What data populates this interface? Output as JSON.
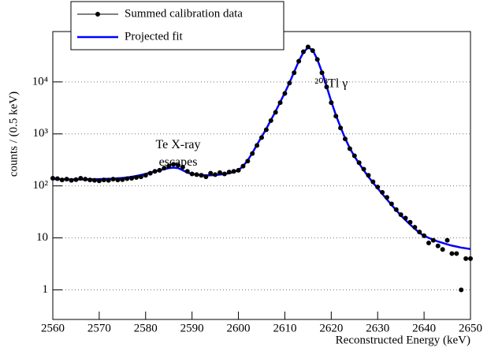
{
  "chart_data": {
    "type": "line",
    "x_label": "Reconstructed Energy (keV)",
    "y_label": "counts / (0.5 keV)",
    "xlim": [
      2560,
      2650
    ],
    "xticks": [
      2560,
      2570,
      2580,
      2590,
      2600,
      2610,
      2620,
      2630,
      2640,
      2650
    ],
    "ylim": [
      0.27,
      93000
    ],
    "log_y": true,
    "grid": true,
    "legend_position": "top-left",
    "yticks": [
      1,
      10,
      {
        "value": 100,
        "label": "10²"
      },
      {
        "value": 1000,
        "label": "10³"
      },
      {
        "value": 10000,
        "label": "10⁴"
      }
    ],
    "annotations": [
      {
        "text": "Te X-ray",
        "x": 2587,
        "y": 600
      },
      {
        "text": "escapes",
        "x": 2587,
        "y": 280
      },
      {
        "text": "²⁰⁸Tl γ",
        "x": 2620,
        "y": 9000
      }
    ],
    "x": [
      2560,
      2561,
      2562,
      2563,
      2564,
      2565,
      2566,
      2567,
      2568,
      2569,
      2570,
      2571,
      2572,
      2573,
      2574,
      2575,
      2576,
      2577,
      2578,
      2579,
      2580,
      2581,
      2582,
      2583,
      2584,
      2585,
      2586,
      2587,
      2588,
      2589,
      2590,
      2591,
      2592,
      2593,
      2594,
      2595,
      2596,
      2597,
      2598,
      2599,
      2600,
      2601,
      2602,
      2603,
      2604,
      2605,
      2606,
      2607,
      2608,
      2609,
      2610,
      2611,
      2612,
      2613,
      2614,
      2615,
      2616,
      2617,
      2618,
      2619,
      2620,
      2621,
      2622,
      2623,
      2624,
      2625,
      2626,
      2627,
      2628,
      2629,
      2630,
      2631,
      2632,
      2633,
      2634,
      2635,
      2636,
      2637,
      2638,
      2639,
      2640,
      2641,
      2642,
      2643,
      2644,
      2645,
      2646,
      2647,
      2648,
      2649,
      2650
    ],
    "series": [
      {
        "name": "Summed calibration data",
        "type": "scatter",
        "color": "#000000",
        "values": [
          140,
          138,
          130,
          135,
          128,
          132,
          140,
          135,
          130,
          128,
          125,
          130,
          128,
          135,
          130,
          132,
          138,
          140,
          145,
          150,
          160,
          175,
          190,
          200,
          220,
          240,
          260,
          250,
          230,
          190,
          170,
          165,
          160,
          150,
          175,
          165,
          180,
          170,
          185,
          190,
          200,
          240,
          300,
          420,
          600,
          850,
          1200,
          1800,
          2600,
          4000,
          6000,
          9500,
          15000,
          25000,
          38000,
          47000,
          40000,
          27000,
          15000,
          8000,
          4000,
          2200,
          1300,
          800,
          520,
          380,
          280,
          210,
          160,
          120,
          95,
          75,
          60,
          45,
          35,
          28,
          24,
          20,
          16,
          13,
          11,
          8,
          9,
          7,
          6,
          9,
          5,
          5,
          1,
          4,
          4
        ]
      },
      {
        "name": "Projected fit",
        "type": "line",
        "color": "#0000ff",
        "values": [
          135,
          135,
          134,
          134,
          133,
          133,
          133,
          133,
          134,
          134,
          135,
          136,
          137,
          138,
          140,
          142,
          145,
          150,
          155,
          162,
          170,
          180,
          190,
          200,
          210,
          220,
          225,
          220,
          200,
          180,
          170,
          165,
          162,
          160,
          160,
          162,
          165,
          170,
          175,
          185,
          200,
          240,
          310,
          430,
          620,
          880,
          1250,
          1850,
          2700,
          4100,
          6200,
          9600,
          15500,
          25000,
          37000,
          46000,
          41000,
          27000,
          15500,
          8200,
          4200,
          2300,
          1350,
          820,
          530,
          370,
          270,
          200,
          150,
          115,
          90,
          70,
          55,
          43,
          34,
          27,
          22,
          18,
          15,
          12.5,
          11,
          10,
          9.2,
          8.5,
          8,
          7.5,
          7.1,
          6.8,
          6.5,
          6.3,
          6.1
        ]
      }
    ]
  }
}
